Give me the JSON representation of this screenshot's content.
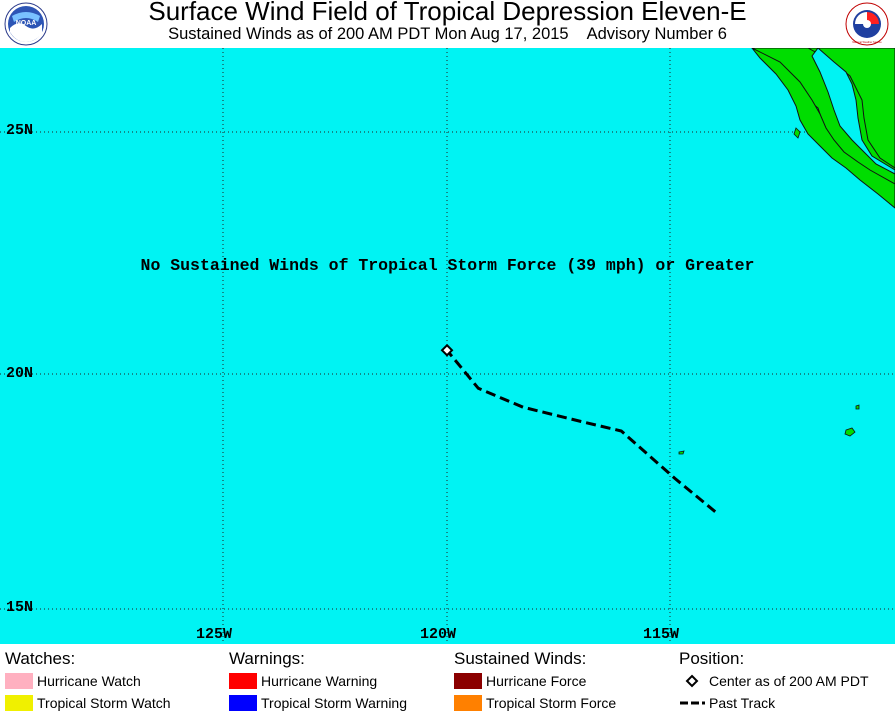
{
  "header": {
    "title": "Surface Wind Field of Tropical Depression Eleven-E",
    "subtitle": "Sustained Winds as of 200 AM PDT Mon Aug 17, 2015",
    "advisory": "Advisory Number 6",
    "logo_left": "NOAA",
    "logo_right": "National Weather Service"
  },
  "map": {
    "ocean_color": "#00f3f3",
    "land_color": "#00dd00",
    "lat_labels": [
      "25N",
      "20N",
      "15N"
    ],
    "lon_labels": [
      "125W",
      "120W",
      "115W"
    ],
    "notice": "No Sustained Winds of Tropical Storm Force (39 mph) or Greater",
    "center_position": {
      "lat": 20.5,
      "lon": -120.0
    },
    "past_track": [
      {
        "lat": 17.1,
        "lon": -114.0
      },
      {
        "lat": 17.8,
        "lon": -114.9
      },
      {
        "lat": 18.8,
        "lon": -116.1
      },
      {
        "lat": 19.0,
        "lon": -117.0
      },
      {
        "lat": 19.3,
        "lon": -118.3
      },
      {
        "lat": 19.7,
        "lon": -119.3
      },
      {
        "lat": 20.5,
        "lon": -120.0
      }
    ]
  },
  "legend": {
    "watches": {
      "heading": "Watches:",
      "items": [
        {
          "label": "Hurricane Watch",
          "color": "#ffb0c0"
        },
        {
          "label": "Tropical Storm Watch",
          "color": "#f0f000"
        }
      ]
    },
    "warnings": {
      "heading": "Warnings:",
      "items": [
        {
          "label": "Hurricane Warning",
          "color": "#ff0000"
        },
        {
          "label": "Tropical Storm Warning",
          "color": "#0000ff"
        }
      ]
    },
    "winds": {
      "heading": "Sustained Winds:",
      "items": [
        {
          "label": "Hurricane Force",
          "color": "#8b0000"
        },
        {
          "label": "Tropical Storm Force",
          "color": "#ff8000"
        }
      ]
    },
    "position": {
      "heading": "Position:",
      "items": [
        {
          "label": "Center as of 200 AM PDT",
          "icon": "diamond-icon"
        },
        {
          "label": "Past Track",
          "icon": "dashed-line-icon"
        }
      ]
    }
  }
}
